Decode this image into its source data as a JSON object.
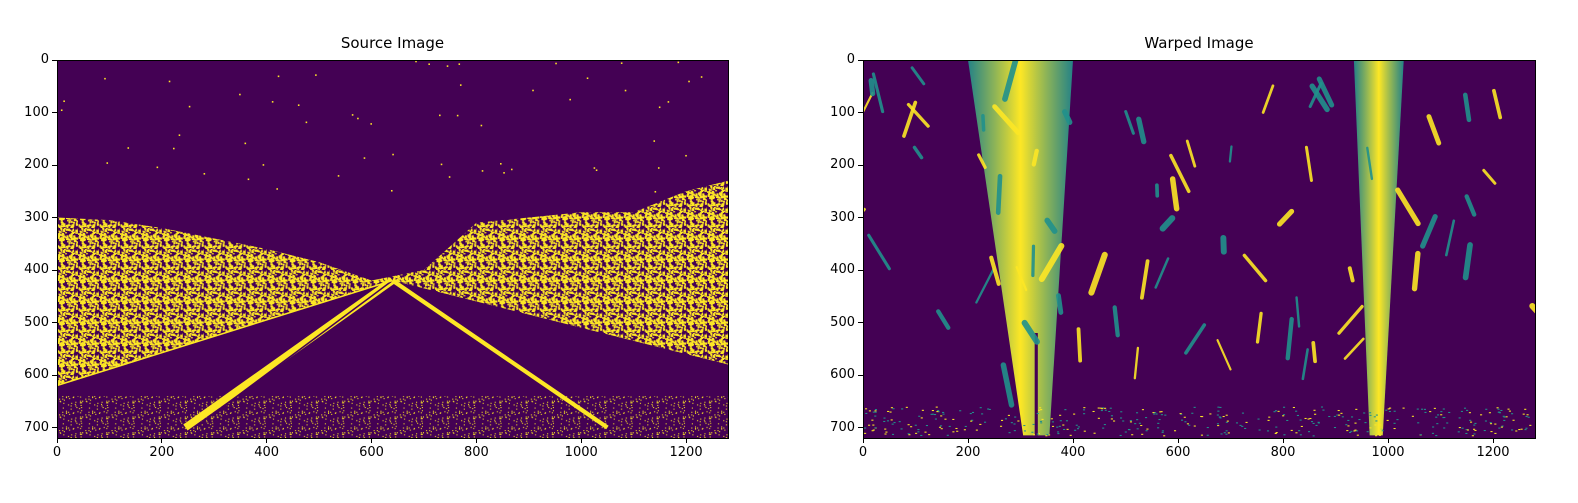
{
  "figure": {
    "background": "#ffffff"
  },
  "colors": {
    "low": "#440154",
    "high": "#fde725",
    "mid": "#21918c"
  },
  "chart_data": [
    {
      "type": "heatmap",
      "title": "Source Image",
      "colormap": "viridis",
      "xlim": [
        0,
        1280
      ],
      "ylim": [
        720,
        0
      ],
      "xticks": [
        0,
        200,
        400,
        600,
        800,
        1000,
        1200
      ],
      "yticks": [
        0,
        100,
        200,
        300,
        400,
        500,
        600,
        700
      ],
      "features": {
        "lane_lines": [
          {
            "from": [
              245,
              700
            ],
            "to": [
              640,
              420
            ],
            "width": 14
          },
          {
            "from": [
              640,
              420
            ],
            "to": [
              1050,
              700
            ],
            "width": 8
          },
          {
            "from": [
              0,
              620
            ],
            "to": [
              640,
              420
            ],
            "width": 3
          }
        ],
        "horizon_y": 420,
        "skyline": [
          [
            0,
            300
          ],
          [
            100,
            305
          ],
          [
            200,
            320
          ],
          [
            300,
            340
          ],
          [
            400,
            360
          ],
          [
            500,
            385
          ],
          [
            600,
            420
          ],
          [
            700,
            400
          ],
          [
            800,
            310
          ],
          [
            900,
            300
          ],
          [
            1000,
            290
          ],
          [
            1100,
            290
          ],
          [
            1200,
            250
          ],
          [
            1280,
            230
          ]
        ]
      }
    },
    {
      "type": "heatmap",
      "title": "Warped Image",
      "colormap": "viridis",
      "xlim": [
        0,
        1280
      ],
      "ylim": [
        720,
        0
      ],
      "xticks": [
        0,
        200,
        400,
        600,
        800,
        1000,
        1200
      ],
      "yticks": [
        0,
        100,
        200,
        300,
        400,
        500,
        600,
        700
      ],
      "features": {
        "left_lane": {
          "x_top": [
            200,
            400
          ],
          "x_bottom": [
            305,
            355
          ],
          "from_y": 0,
          "to_y": 715
        },
        "right_lane": {
          "x_top": [
            935,
            1030
          ],
          "x_bottom": [
            965,
            990
          ],
          "from_y": 0,
          "to_y": 715
        }
      }
    }
  ]
}
